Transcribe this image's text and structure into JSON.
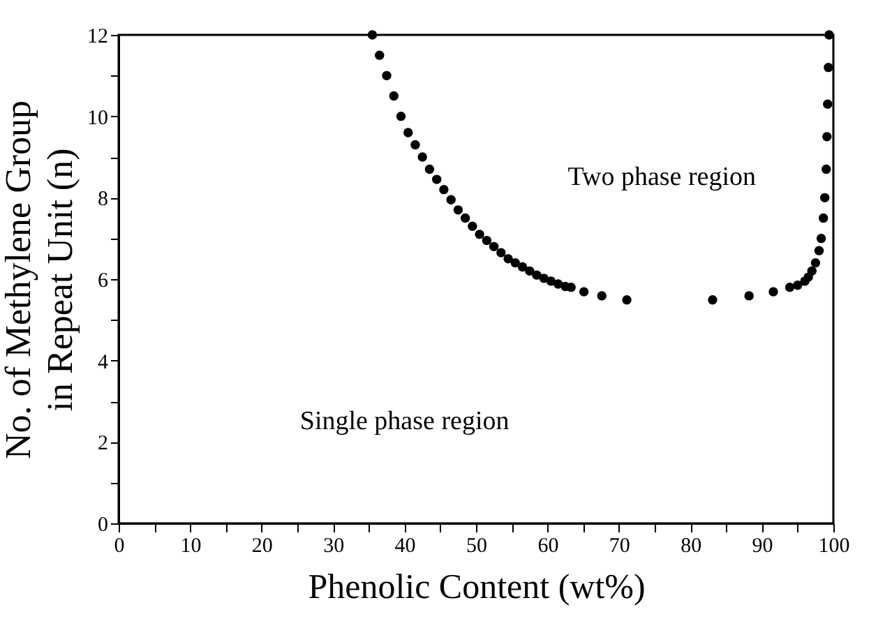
{
  "chart_data": {
    "type": "scatter",
    "xlabel": "Phenolic Content (wt%)",
    "ylabel": "No. of Methylene Group\nin Repeat Unit (n)",
    "x": [
      35.5,
      36.5,
      37.5,
      38.5,
      39.5,
      40.5,
      41.5,
      42.5,
      43.5,
      44.5,
      45.5,
      46.5,
      47.5,
      48.5,
      49.5,
      50.5,
      51.5,
      52.5,
      53.5,
      54.5,
      55.5,
      56.5,
      57.5,
      58.5,
      59.5,
      60.5,
      61.5,
      62.5,
      63.3,
      65.1,
      67.6,
      71.1,
      83.1,
      88.2,
      91.6,
      93.9,
      95,
      96,
      96.5,
      97,
      97.5,
      98,
      98.3,
      98.6,
      98.8,
      99,
      99.1,
      99.2,
      99.3,
      99.4
    ],
    "series": [
      {
        "color": "#000000",
        "values": [
          12,
          11.5,
          11.0,
          10.5,
          10.0,
          9.6,
          9.3,
          9.0,
          8.7,
          8.45,
          8.2,
          7.95,
          7.7,
          7.5,
          7.3,
          7.1,
          6.95,
          6.8,
          6.65,
          6.5,
          6.4,
          6.3,
          6.2,
          6.1,
          6.02,
          5.95,
          5.88,
          5.82,
          5.8,
          5.69,
          5.59,
          5.49,
          5.49,
          5.59,
          5.69,
          5.8,
          5.85,
          5.95,
          6.05,
          6.2,
          6.4,
          6.7,
          7.0,
          7.5,
          8.0,
          8.7,
          9.5,
          10.3,
          11.2,
          12
        ]
      }
    ],
    "marker": "circle",
    "xlim": [
      0,
      100
    ],
    "ylim": [
      0,
      12
    ],
    "xticks": [
      0,
      {
        "value": 5,
        "label": null
      },
      10,
      {
        "value": 15,
        "label": null
      },
      20,
      {
        "value": 25,
        "label": null
      },
      30,
      {
        "value": 35,
        "label": null
      },
      40,
      {
        "value": 45,
        "label": null
      },
      50,
      {
        "value": 55,
        "label": null
      },
      60,
      {
        "value": 65,
        "label": null
      },
      70,
      {
        "value": 75,
        "label": null
      },
      80,
      {
        "value": 85,
        "label": null
      },
      90,
      {
        "value": 95,
        "label": null
      },
      100
    ],
    "yticks": [
      0,
      {
        "value": 1,
        "label": null
      },
      2,
      {
        "value": 3,
        "label": null
      },
      4,
      {
        "value": 5,
        "label": null
      },
      6,
      {
        "value": 7,
        "label": null
      },
      8,
      {
        "value": 9,
        "label": null
      },
      10,
      {
        "value": 11,
        "label": null
      },
      12
    ],
    "annotations": [
      "Two phase region",
      "Single phase region"
    ],
    "grid": false
  }
}
